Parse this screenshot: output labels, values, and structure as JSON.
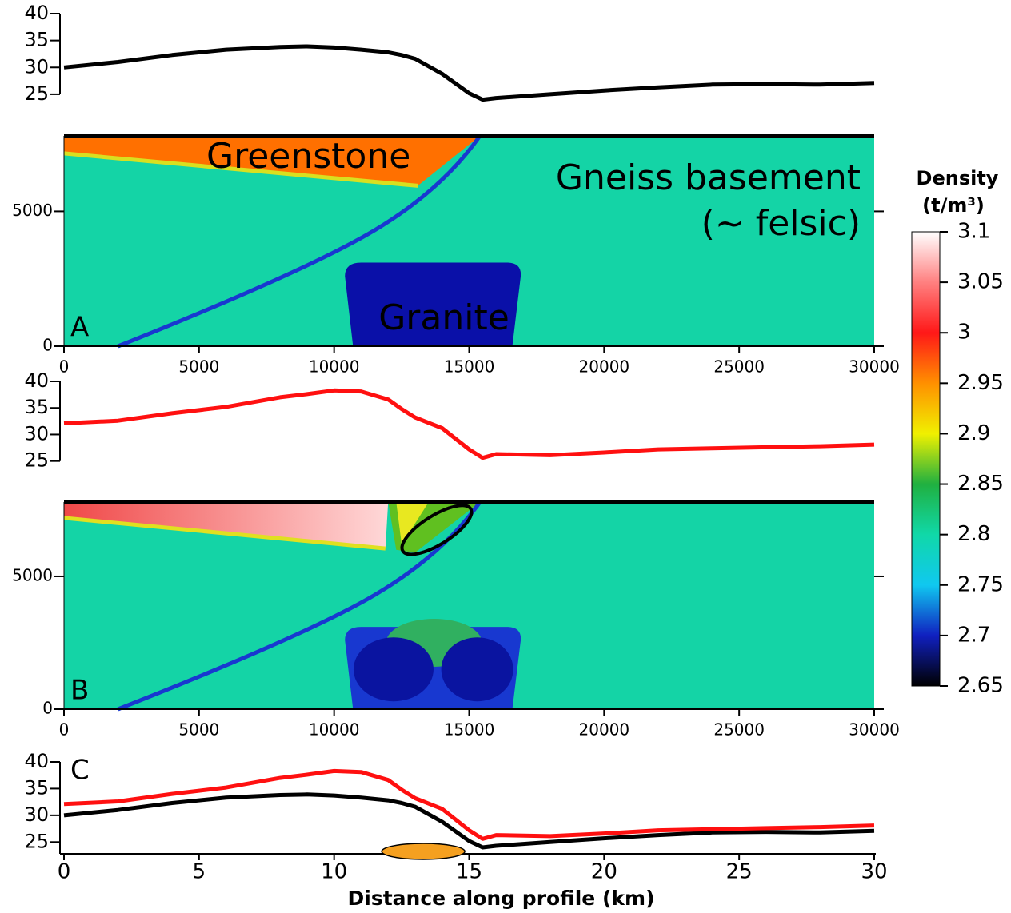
{
  "chart_data": [
    {
      "type": "line",
      "x": [
        0,
        2,
        4,
        6,
        8,
        9,
        10,
        11,
        12,
        12.5,
        13,
        14,
        15,
        15.5,
        16,
        18,
        20,
        22,
        24,
        26,
        28,
        30
      ],
      "series": [
        {
          "color": "#000000",
          "values": [
            30,
            31,
            32.3,
            33.3,
            33.8,
            33.9,
            33.7,
            33.3,
            32.8,
            32.3,
            31.6,
            28.8,
            25.2,
            24,
            24.3,
            25,
            25.7,
            26.3,
            26.8,
            26.9,
            26.8,
            27.1
          ]
        }
      ],
      "xlim": [
        0,
        30
      ],
      "ylim": [
        23.5,
        40
      ],
      "yticks": [
        25,
        30,
        35,
        40
      ]
    },
    {
      "type": "section",
      "label": "A",
      "annotations": [
        "Greenstone",
        "Gneiss basement",
        "(~ felsic)",
        "Granite"
      ],
      "xlim": [
        0,
        30000
      ],
      "xticks": [
        0,
        5000,
        10000,
        15000,
        20000,
        25000,
        30000
      ],
      "ylim": [
        0,
        7800
      ],
      "yticks": [
        0,
        5000
      ]
    },
    {
      "type": "line",
      "x": [
        0,
        2,
        4,
        6,
        8,
        9,
        10,
        11,
        12,
        12.5,
        13,
        14,
        15,
        15.5,
        16,
        18,
        20,
        22,
        24,
        26,
        28,
        30
      ],
      "series": [
        {
          "color": "#ff1010",
          "values": [
            32.1,
            32.6,
            34,
            35.2,
            37,
            37.6,
            38.3,
            38.1,
            36.6,
            34.8,
            33.2,
            31.2,
            27.2,
            25.6,
            26.3,
            26.1,
            26.6,
            27.2,
            27.4,
            27.6,
            27.8,
            28.1
          ]
        }
      ],
      "xlim": [
        0,
        30
      ],
      "ylim": [
        24.5,
        40
      ],
      "yticks": [
        25,
        30,
        35,
        40
      ]
    },
    {
      "type": "section",
      "label": "B",
      "annotations": [],
      "xlim": [
        0,
        30000
      ],
      "xticks": [
        0,
        5000,
        10000,
        15000,
        20000,
        25000,
        30000
      ],
      "ylim": [
        0,
        7800
      ],
      "yticks": [
        0,
        5000
      ]
    },
    {
      "type": "line",
      "label": "C",
      "x": [
        0,
        2,
        4,
        6,
        8,
        9,
        10,
        11,
        12,
        12.5,
        13,
        14,
        15,
        15.5,
        16,
        18,
        20,
        22,
        24,
        26,
        28,
        30
      ],
      "series": [
        {
          "color": "#000000",
          "values": [
            30,
            31,
            32.3,
            33.3,
            33.8,
            33.9,
            33.7,
            33.3,
            32.8,
            32.3,
            31.6,
            28.8,
            25.2,
            24,
            24.3,
            25,
            25.7,
            26.3,
            26.8,
            26.9,
            26.8,
            27.1
          ]
        },
        {
          "color": "#ff1010",
          "values": [
            32.1,
            32.6,
            34,
            35.2,
            37,
            37.6,
            38.3,
            38.1,
            36.6,
            34.8,
            33.2,
            31.2,
            27.2,
            25.6,
            26.3,
            26.1,
            26.6,
            27.2,
            27.4,
            27.6,
            27.8,
            28.1
          ]
        }
      ],
      "xlim": [
        0,
        30
      ],
      "xticks": [
        0,
        5,
        10,
        15,
        20,
        25,
        30
      ],
      "xlabel": "Distance along profile (km)",
      "ylim": [
        22.8,
        40
      ],
      "yticks": [
        25,
        30,
        35,
        40
      ]
    },
    {
      "type": "colorbar",
      "title": "Density",
      "unit": "(t/m³)",
      "ylim": [
        2.65,
        3.1
      ],
      "yticks": [
        2.65,
        2.7,
        2.75,
        2.8,
        2.85,
        2.9,
        2.95,
        3,
        3.05,
        3.1
      ],
      "colors": [
        "#000000",
        "#1020c0",
        "#10c8f0",
        "#10d8a8",
        "#20b040",
        "#f0f000",
        "#ff9000",
        "#ff1818",
        "#ff8080",
        "#ffffff"
      ]
    }
  ]
}
